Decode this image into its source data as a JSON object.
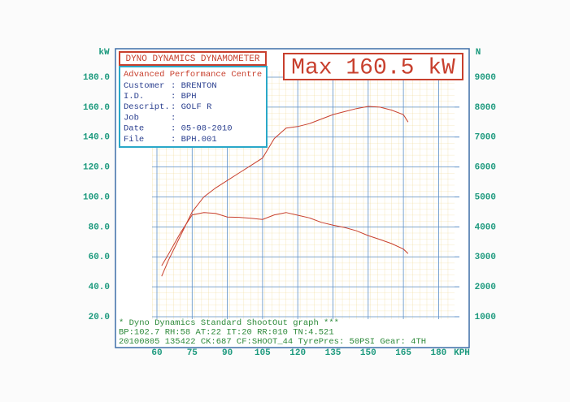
{
  "chart_data": {
    "type": "line",
    "title": "DYNO DYNAMICS DYNAMOMETER",
    "annotation": "Max 160.5 kW",
    "ylabel": "kW",
    "y2label": "N",
    "xlabel": "KPH",
    "info": {
      "company": "Advanced Performance Centre",
      "rows": [
        [
          "Customer",
          ": BRENTON"
        ],
        [
          "I.D.",
          ": BPH"
        ],
        [
          "Descript.",
          ": GOLF R"
        ],
        [
          "Job",
          ":"
        ],
        [
          "Date",
          ": 05-08-2010"
        ],
        [
          "File",
          ": BPH.001"
        ]
      ]
    },
    "footer": [
      "* Dyno Dynamics Standard ShootOut graph ***",
      "BP:102.7 RH:58 AT:22 IT:20 RR:010 TN:4.521",
      "20100805 135422 CK:687 CF:SHOOT_44 TyrePres: 50PSI    Gear: 4TH"
    ],
    "x": [
      62,
      65,
      70,
      75,
      80,
      85,
      90,
      95,
      100,
      105,
      110,
      115,
      120,
      125,
      130,
      135,
      140,
      145,
      150,
      155,
      160,
      165,
      167
    ],
    "xlim": [
      60,
      180
    ],
    "xticks": [
      60,
      75,
      90,
      105,
      120,
      135,
      150,
      165,
      180
    ],
    "ylim": [
      20,
      180
    ],
    "yticks": [
      {
        "value": 20,
        "label": "20.0"
      },
      {
        "value": 40,
        "label": "40.0"
      },
      {
        "value": 60,
        "label": "60.0"
      },
      {
        "value": 80,
        "label": "80.0"
      },
      {
        "value": 100,
        "label": "100.0"
      },
      {
        "value": 120,
        "label": "120.0"
      },
      {
        "value": 140,
        "label": "140.0"
      },
      {
        "value": 160,
        "label": "160.0"
      },
      {
        "value": 180,
        "label": "180.0"
      }
    ],
    "y2lim": [
      1000,
      9000
    ],
    "y2ticks": [
      1000,
      2000,
      3000,
      4000,
      5000,
      6000,
      7000,
      8000,
      9000
    ],
    "grid": true,
    "series": [
      {
        "color": "#c8402e",
        "values": [
          47,
          58,
          74,
          90,
          100,
          106,
          111,
          116,
          121,
          126,
          139,
          146,
          147,
          149,
          152,
          155,
          157,
          159,
          160.5,
          160,
          158,
          155,
          150
        ]
      },
      {
        "color": "#c8402e",
        "axis": "y2",
        "values": [
          2700,
          3100,
          3800,
          4400,
          4480,
          4450,
          4330,
          4320,
          4290,
          4250,
          4400,
          4480,
          4390,
          4300,
          4150,
          4060,
          3980,
          3870,
          3710,
          3580,
          3440,
          3260,
          3110
        ]
      }
    ]
  }
}
